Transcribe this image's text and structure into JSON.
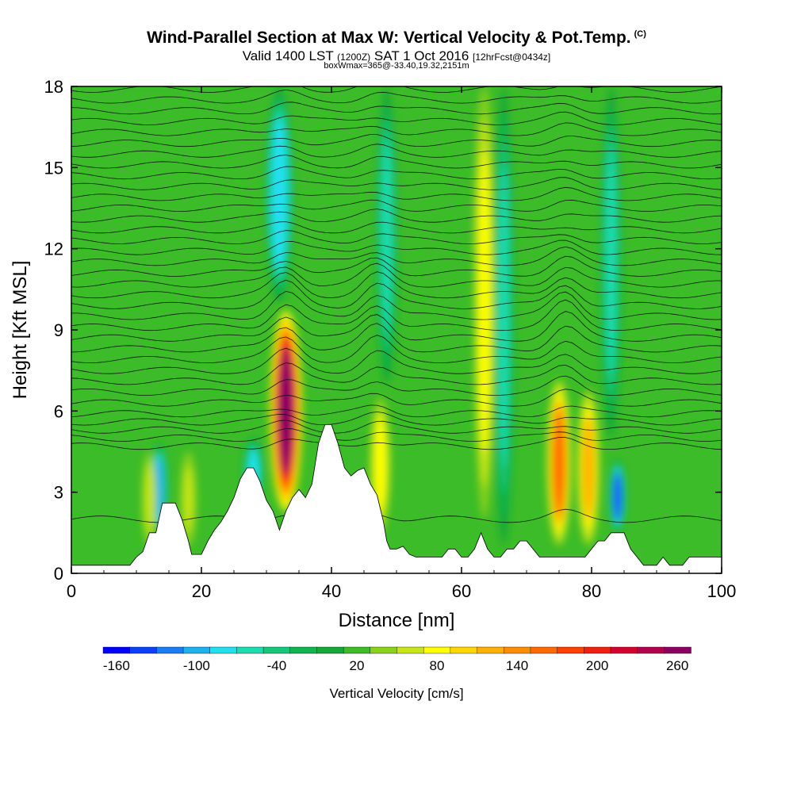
{
  "header": {
    "title": "Wind-Parallel Section at Max W: Vertical Velocity & Pot.Temp.",
    "copyright": "(C)",
    "valid_prefix": "Valid 1400 LST",
    "valid_utc": "(1200Z)",
    "valid_date": "SAT 1 Oct 2016",
    "forecast": "[12hrFcst@0434z]",
    "box_info": "boxWmax=365@-33.40,19.32,2151m"
  },
  "chart_data": {
    "type": "heatmap",
    "title": "Wind-Parallel Section at Max W: Vertical Velocity & Pot.Temp.",
    "xlabel": "Distance [nm]",
    "ylabel": "Height [Kft MSL]",
    "xlim": [
      0,
      100
    ],
    "ylim": [
      0,
      18
    ],
    "xticks": [
      0,
      20,
      40,
      60,
      80,
      100
    ],
    "xtick_labels": [
      "0",
      "20",
      "40",
      "60",
      "80",
      "100"
    ],
    "yticks": [
      0,
      3,
      6,
      9,
      12,
      15,
      18
    ],
    "ytick_labels": [
      "0",
      "3",
      "6",
      "9",
      "12",
      "15",
      "18"
    ],
    "colorbar": {
      "label": "Vertical Velocity [cm/s]",
      "colors": [
        "#0000ff",
        "#0b3ffa",
        "#1a7df5",
        "#1fb0f0",
        "#20e0f0",
        "#1ddcb0",
        "#13c87a",
        "#10b450",
        "#15a838",
        "#3cbc28",
        "#8ad11a",
        "#c8e614",
        "#ffff00",
        "#ffd700",
        "#ffb000",
        "#ff8c00",
        "#ff6a00",
        "#ff4000",
        "#f02010",
        "#d40030",
        "#b4004c",
        "#8c0064"
      ],
      "tick_labels": [
        "-160",
        "-100",
        "-40",
        "20",
        "80",
        "140",
        "200",
        "260"
      ]
    },
    "terrain": [
      [
        0,
        0.3
      ],
      [
        9,
        0.3
      ],
      [
        10,
        0.6
      ],
      [
        11,
        0.8
      ],
      [
        12,
        1.5
      ],
      [
        13,
        1.5
      ],
      [
        14,
        2.6
      ],
      [
        16,
        2.6
      ],
      [
        17,
        2.0
      ],
      [
        18,
        1.2
      ],
      [
        18.5,
        0.7
      ],
      [
        20,
        0.7
      ],
      [
        21,
        1.2
      ],
      [
        22,
        1.6
      ],
      [
        23,
        1.9
      ],
      [
        24,
        2.3
      ],
      [
        25,
        2.8
      ],
      [
        26,
        3.5
      ],
      [
        27,
        3.9
      ],
      [
        28,
        3.9
      ],
      [
        29,
        3.4
      ],
      [
        30,
        2.7
      ],
      [
        31,
        2.3
      ],
      [
        32,
        1.6
      ],
      [
        33,
        2.3
      ],
      [
        34,
        2.8
      ],
      [
        35,
        3.1
      ],
      [
        36,
        2.8
      ],
      [
        37,
        3.3
      ],
      [
        38,
        4.8
      ],
      [
        39,
        5.5
      ],
      [
        40,
        5.5
      ],
      [
        41,
        4.8
      ],
      [
        42,
        3.9
      ],
      [
        43,
        3.6
      ],
      [
        44,
        3.8
      ],
      [
        45,
        3.9
      ],
      [
        46,
        3.3
      ],
      [
        47,
        2.9
      ],
      [
        48,
        1.9
      ],
      [
        48.5,
        1.2
      ],
      [
        49,
        0.9
      ],
      [
        50,
        0.9
      ],
      [
        51,
        1.0
      ],
      [
        52,
        0.7
      ],
      [
        53,
        0.6
      ],
      [
        57,
        0.6
      ],
      [
        58,
        0.9
      ],
      [
        59,
        0.9
      ],
      [
        60,
        0.6
      ],
      [
        61,
        0.6
      ],
      [
        62,
        0.9
      ],
      [
        63,
        1.5
      ],
      [
        64,
        0.9
      ],
      [
        65,
        0.6
      ],
      [
        66,
        0.6
      ],
      [
        67,
        0.9
      ],
      [
        68,
        0.9
      ],
      [
        69,
        1.2
      ],
      [
        70,
        1.2
      ],
      [
        71,
        0.9
      ],
      [
        72,
        0.6
      ],
      [
        79,
        0.6
      ],
      [
        80,
        0.9
      ],
      [
        81,
        1.2
      ],
      [
        82,
        1.2
      ],
      [
        83,
        1.5
      ],
      [
        85,
        1.5
      ],
      [
        86,
        0.9
      ],
      [
        87,
        0.6
      ],
      [
        88,
        0.3
      ],
      [
        90,
        0.3
      ],
      [
        91,
        0.6
      ],
      [
        92,
        0.3
      ],
      [
        94,
        0.3
      ],
      [
        95,
        0.6
      ],
      [
        100,
        0.6
      ]
    ],
    "updrafts": [
      {
        "x": 33.0,
        "z_bottom": 2.2,
        "z_top": 9.8,
        "half_width": 1.6,
        "w_max": 260
      },
      {
        "x": 75.0,
        "z_bottom": 1.0,
        "z_top": 7.2,
        "half_width": 1.2,
        "w_max": 160
      },
      {
        "x": 79.5,
        "z_bottom": 1.0,
        "z_top": 6.8,
        "half_width": 1.1,
        "w_max": 120
      },
      {
        "x": 63.5,
        "z_bottom": 2.0,
        "z_top": 18.0,
        "half_width": 1.0,
        "w_max": 70
      },
      {
        "x": 47.5,
        "z_bottom": 1.5,
        "z_top": 6.5,
        "half_width": 1.0,
        "w_max": 70
      },
      {
        "x": 18.0,
        "z_bottom": 1.0,
        "z_top": 4.5,
        "half_width": 0.8,
        "w_max": 60
      },
      {
        "x": 12.0,
        "z_bottom": 1.0,
        "z_top": 4.5,
        "half_width": 0.7,
        "w_max": 50
      }
    ],
    "downdrafts": [
      {
        "x": 32.0,
        "z_bottom": 10.0,
        "z_top": 18.0,
        "half_width": 1.3,
        "w_min": -90
      },
      {
        "x": 84.0,
        "z_bottom": 1.5,
        "z_top": 4.2,
        "half_width": 0.8,
        "w_min": -140
      },
      {
        "x": 13.5,
        "z_bottom": 1.5,
        "z_top": 4.8,
        "half_width": 0.8,
        "w_min": -110
      },
      {
        "x": 28.0,
        "z_bottom": 2.5,
        "z_top": 5.0,
        "half_width": 1.0,
        "w_min": -80
      },
      {
        "x": 66.5,
        "z_bottom": 1.0,
        "z_top": 18.0,
        "half_width": 1.0,
        "w_min": -60
      },
      {
        "x": 83.0,
        "z_bottom": 5.0,
        "z_top": 18.0,
        "half_width": 1.0,
        "w_min": -60
      },
      {
        "x": 48.5,
        "z_bottom": 7.0,
        "z_top": 18.0,
        "half_width": 1.0,
        "w_min": -60
      }
    ],
    "theta_contours": {
      "base_heights": [
        2.0,
        4.7,
        5.0,
        5.3,
        5.6,
        5.9,
        6.3,
        6.7,
        7.1,
        7.5,
        7.9,
        8.3,
        8.7,
        9.1,
        9.5,
        9.9,
        10.3,
        10.7,
        11.1,
        11.5,
        11.9,
        12.3,
        12.7,
        13.1,
        13.5,
        13.9,
        14.3,
        14.7,
        15.1,
        15.5,
        15.9,
        16.3,
        16.7,
        17.1,
        17.5,
        17.9
      ],
      "ridge_x": [
        33,
        47,
        76
      ]
    }
  }
}
